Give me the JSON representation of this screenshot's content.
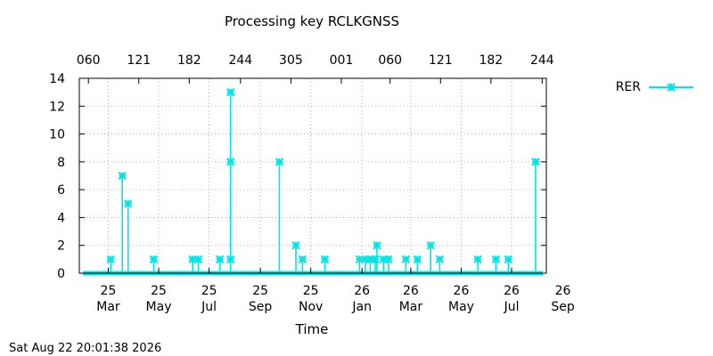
{
  "chart_data": {
    "type": "line",
    "title": "Processing key RCLKGNSS",
    "xlabel": "Time",
    "ylabel": "",
    "x_start": "2025-02-18",
    "x_end": "2026-09-06",
    "ylim": [
      0,
      14
    ],
    "yticks": [
      0,
      2,
      4,
      6,
      8,
      10,
      12,
      14
    ],
    "xticks_bottom": [
      {
        "date": "2025-03-25",
        "day": "25",
        "month": "Mar"
      },
      {
        "date": "2025-05-25",
        "day": "25",
        "month": "May"
      },
      {
        "date": "2025-07-25",
        "day": "25",
        "month": "Jul"
      },
      {
        "date": "2025-09-25",
        "day": "25",
        "month": "Sep"
      },
      {
        "date": "2025-11-25",
        "day": "25",
        "month": "Nov"
      },
      {
        "date": "2026-01-26",
        "day": "26",
        "month": "Jan"
      },
      {
        "date": "2026-03-26",
        "day": "26",
        "month": "Mar"
      },
      {
        "date": "2026-05-26",
        "day": "26",
        "month": "May"
      },
      {
        "date": "2026-07-26",
        "day": "26",
        "month": "Jul"
      },
      {
        "date": "2026-09-26",
        "day": "26",
        "month": "Sep"
      }
    ],
    "xticks_top": [
      {
        "date": "2025-03-01",
        "label": "060"
      },
      {
        "date": "2025-05-01",
        "label": "121"
      },
      {
        "date": "2025-07-01",
        "label": "182"
      },
      {
        "date": "2025-09-01",
        "label": "244"
      },
      {
        "date": "2025-11-01",
        "label": "305"
      },
      {
        "date": "2026-01-01",
        "label": "001"
      },
      {
        "date": "2026-03-01",
        "label": "060"
      },
      {
        "date": "2026-05-01",
        "label": "121"
      },
      {
        "date": "2026-07-01",
        "label": "182"
      },
      {
        "date": "2026-09-01",
        "label": "244"
      }
    ],
    "grid": true,
    "legend_position": "top-right outside",
    "series": [
      {
        "name": "RER",
        "color": "#00e5e5",
        "baseline": 0,
        "points": [
          {
            "x": "2025-03-28",
            "y": 1
          },
          {
            "x": "2025-04-11",
            "y": 7
          },
          {
            "x": "2025-04-18",
            "y": 5
          },
          {
            "x": "2025-05-19",
            "y": 1
          },
          {
            "x": "2025-07-05",
            "y": 1
          },
          {
            "x": "2025-07-12",
            "y": 1
          },
          {
            "x": "2025-08-07",
            "y": 1
          },
          {
            "x": "2025-08-20",
            "y": 13
          },
          {
            "x": "2025-08-20",
            "y": 8
          },
          {
            "x": "2025-08-20",
            "y": 1
          },
          {
            "x": "2025-10-18",
            "y": 8
          },
          {
            "x": "2025-11-07",
            "y": 2
          },
          {
            "x": "2025-11-15",
            "y": 1
          },
          {
            "x": "2025-12-12",
            "y": 1
          },
          {
            "x": "2026-01-23",
            "y": 1
          },
          {
            "x": "2026-01-30",
            "y": 1
          },
          {
            "x": "2026-02-05",
            "y": 1
          },
          {
            "x": "2026-02-11",
            "y": 1
          },
          {
            "x": "2026-02-13",
            "y": 2
          },
          {
            "x": "2026-02-21",
            "y": 1
          },
          {
            "x": "2026-02-27",
            "y": 1
          },
          {
            "x": "2026-03-20",
            "y": 1
          },
          {
            "x": "2026-04-03",
            "y": 1
          },
          {
            "x": "2026-04-19",
            "y": 2
          },
          {
            "x": "2026-04-30",
            "y": 1
          },
          {
            "x": "2026-06-15",
            "y": 1
          },
          {
            "x": "2026-07-07",
            "y": 1
          },
          {
            "x": "2026-07-22",
            "y": 1
          },
          {
            "x": "2026-08-24",
            "y": 8
          }
        ]
      }
    ]
  },
  "footer": {
    "timestamp": "Sat Aug 22 20:01:38 2026"
  }
}
